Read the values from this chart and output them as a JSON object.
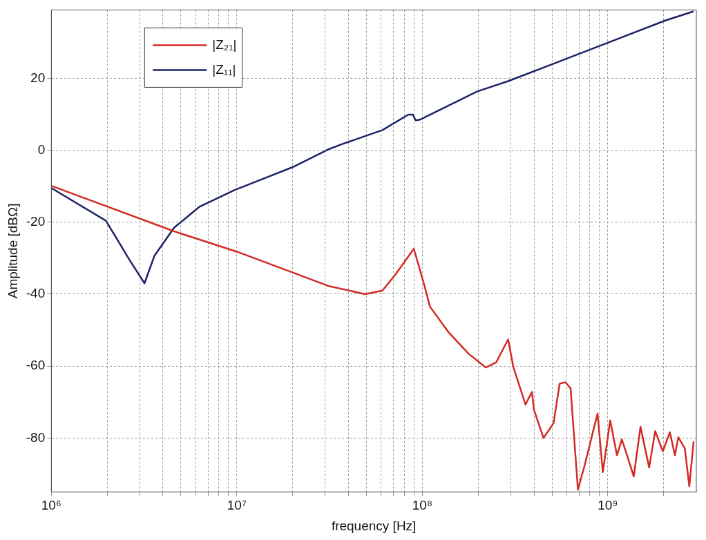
{
  "chart_data": {
    "type": "line",
    "xlabel": "frequency [Hz]",
    "ylabel": "Amplitude [dBΩ]",
    "log": "x",
    "grid": true,
    "legend": "top left",
    "marker": "none",
    "line_style": "solid",
    "xlim": [
      1000000,
      3000000000
    ],
    "ylim": [
      -95,
      39
    ],
    "xticks": [
      {
        "value": 1000000,
        "label": "10⁶"
      },
      {
        "value": 2000000,
        "label": null
      },
      {
        "value": 3000000,
        "label": null
      },
      {
        "value": 4000000,
        "label": null
      },
      {
        "value": 5000000,
        "label": null
      },
      {
        "value": 6000000,
        "label": null
      },
      {
        "value": 7000000,
        "label": null
      },
      {
        "value": 8000000,
        "label": null
      },
      {
        "value": 9000000,
        "label": null
      },
      {
        "value": 10000000,
        "label": "10⁷"
      },
      {
        "value": 20000000,
        "label": null
      },
      {
        "value": 30000000,
        "label": null
      },
      {
        "value": 40000000,
        "label": null
      },
      {
        "value": 50000000,
        "label": null
      },
      {
        "value": 60000000,
        "label": null
      },
      {
        "value": 70000000,
        "label": null
      },
      {
        "value": 80000000,
        "label": null
      },
      {
        "value": 90000000,
        "label": null
      },
      {
        "value": 100000000,
        "label": "10⁸"
      },
      {
        "value": 200000000,
        "label": null
      },
      {
        "value": 300000000,
        "label": null
      },
      {
        "value": 400000000,
        "label": null
      },
      {
        "value": 500000000,
        "label": null
      },
      {
        "value": 600000000,
        "label": null
      },
      {
        "value": 700000000,
        "label": null
      },
      {
        "value": 800000000,
        "label": null
      },
      {
        "value": 900000000,
        "label": null
      },
      {
        "value": 1000000000,
        "label": "10⁹"
      },
      {
        "value": 2000000000,
        "label": null
      }
    ],
    "yticks": [
      -80,
      -60,
      -40,
      -20,
      0,
      20
    ],
    "series": [
      {
        "name": "|Z₂₁|",
        "color": "#d42a24",
        "x": [
          1000000,
          4570000,
          10000000,
          20000000,
          31000000,
          49000000,
          61000000,
          72000000,
          90000000,
          102000000,
          110000000,
          139000000,
          177000000,
          220000000,
          250000000,
          290000000,
          310000000,
          360000000,
          390000000,
          400000000,
          450000000,
          510000000,
          550000000,
          590000000,
          630000000,
          690000000,
          750000000,
          880000000,
          940000000,
          1030000000,
          1120000000,
          1190000000,
          1260000000,
          1380000000,
          1500000000,
          1670000000,
          1800000000,
          1980000000,
          2160000000,
          2300000000,
          2400000000,
          2600000000,
          2750000000,
          2900000000
        ],
        "values": [
          -9.9,
          -22.5,
          -28.2,
          -34,
          -37.7,
          -40,
          -39,
          -34.4,
          -27.4,
          -37.1,
          -43.5,
          -50.7,
          -56.5,
          -60.4,
          -59,
          -52.6,
          -60.4,
          -70.7,
          -67.2,
          -72.2,
          -80,
          -75.9,
          -64.9,
          -64.5,
          -66.2,
          -94.4,
          -87.6,
          -73.2,
          -89.5,
          -75.1,
          -84.8,
          -80.4,
          -84.3,
          -90.7,
          -76.9,
          -88.2,
          -78.1,
          -83.7,
          -78.4,
          -84.8,
          -79.8,
          -82.9,
          -93.4,
          -81
        ]
      },
      {
        "name": "|Z₁₁|",
        "color": "#1c2368",
        "x": [
          1000000,
          1970000,
          2640000,
          3180000,
          3600000,
          4600000,
          6300000,
          9700000,
          20000000,
          31000000,
          37000000,
          61000000,
          84000000,
          89000000,
          92000000,
          97000000,
          197000000,
          290000000,
          500000000,
          1000000000,
          2050000000,
          2900000000
        ],
        "values": [
          -10.5,
          -19.6,
          -30.5,
          -37,
          -29.3,
          -21.5,
          -15.7,
          -11.1,
          -4.7,
          0.2,
          1.7,
          5.6,
          9.9,
          9.9,
          8.3,
          8.5,
          16.3,
          19.2,
          23.9,
          29.9,
          36.1,
          38.6
        ]
      }
    ]
  }
}
